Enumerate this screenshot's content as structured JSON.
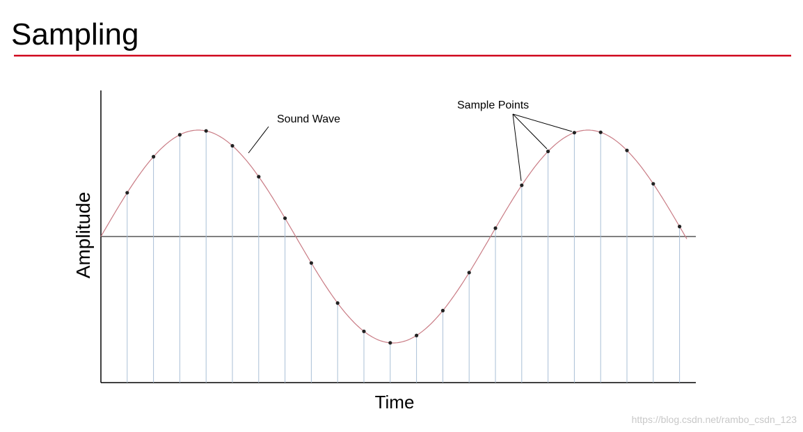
{
  "header": {
    "title": "Sampling"
  },
  "diagram": {
    "y_axis_label": "Amplitude",
    "x_axis_label": "Time",
    "annotations": {
      "wave": "Sound Wave",
      "samples": "Sample Points"
    }
  },
  "footer": {
    "watermark": "https://blog.csdn.net/rambo_csdn_123"
  }
}
